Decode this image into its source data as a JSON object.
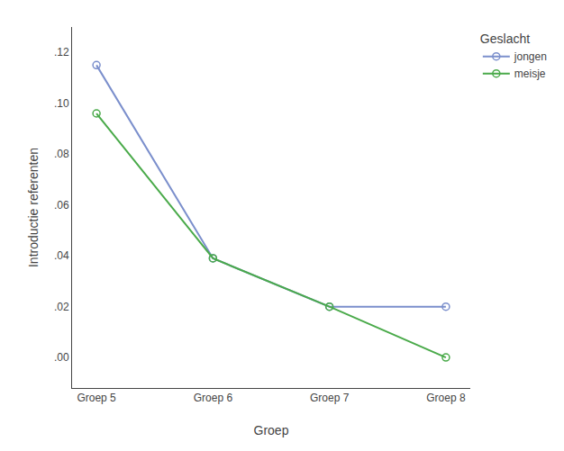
{
  "chart_data": {
    "type": "line",
    "categories": [
      "Groep 5",
      "Groep 6",
      "Groep 7",
      "Groep 8"
    ],
    "series": [
      {
        "name": "jongen",
        "color": "#7b8fcc",
        "values": [
          0.115,
          0.039,
          0.02,
          0.02
        ]
      },
      {
        "name": "meisje",
        "color": "#4aaa4a",
        "values": [
          0.096,
          0.039,
          0.02,
          0.0
        ]
      }
    ],
    "xlabel": "Groep",
    "ylabel": "Introductie referenten",
    "legend_title": "Geslacht",
    "ylim": [
      -0.012,
      0.13
    ],
    "yticks": [
      {
        "value": 0.0,
        "label": ".00"
      },
      {
        "value": 0.02,
        "label": ".02"
      },
      {
        "value": 0.04,
        "label": ".04"
      },
      {
        "value": 0.06,
        "label": ".06"
      },
      {
        "value": 0.08,
        "label": ".08"
      },
      {
        "value": 0.1,
        "label": ".10"
      },
      {
        "value": 0.12,
        "label": ".12"
      }
    ],
    "grid": false,
    "legend": "right",
    "marker": "circle",
    "line_style": "solid"
  }
}
